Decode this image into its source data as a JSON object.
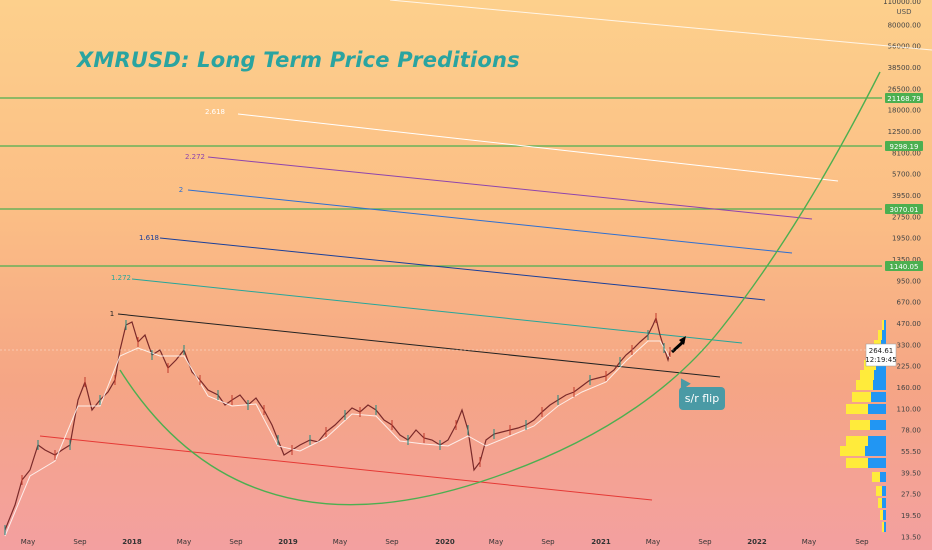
{
  "title": "XMRUSD: Long Term Price Preditions",
  "callout": "s/r flip",
  "currency": "USD",
  "price_tag": "264.61",
  "countdown": "12:19:45",
  "y_ticks": [
    "110000.00",
    "80000.00",
    "56000.00",
    "38500.00",
    "26500.00",
    "18000.00",
    "12500.00",
    "8100.00",
    "5700.00",
    "3950.00",
    "2750.00",
    "1950.00",
    "1350.00",
    "950.00",
    "670.00",
    "470.00",
    "330.00",
    "225.00",
    "160.00",
    "110.00",
    "78.00",
    "55.50",
    "39.50",
    "27.50",
    "19.50",
    "13.50"
  ],
  "x_ticks": [
    "May",
    "Sep",
    "2018",
    "May",
    "Sep",
    "2019",
    "May",
    "Sep",
    "2020",
    "May",
    "Sep",
    "2021",
    "May",
    "Sep",
    "2022",
    "May",
    "Sep"
  ],
  "levels": [
    "21168.79",
    "9298.19",
    "3070.01",
    "1140.05"
  ],
  "fib_labels": [
    "2.618",
    "2.272",
    "2",
    "1.618",
    "1.272",
    "1"
  ],
  "colors": {
    "title": "#2aa4a0",
    "level_line": "#4caf50",
    "candle_up": "#26a69a",
    "candle_down": "#ef5350",
    "arc": "#4caf50",
    "support": "#e53935",
    "volume_up": "#2196f3",
    "volume_down": "#ffeb3b"
  },
  "chart_data": {
    "type": "line",
    "symbol": "XMRUSD",
    "y_scale": "log",
    "ylim": [
      11.5,
      125000
    ],
    "x": [
      "2017-05",
      "2017-09",
      "2018-01",
      "2018-05",
      "2018-09",
      "2019-01",
      "2019-05",
      "2019-09",
      "2020-01",
      "2020-05",
      "2020-09",
      "2021-01",
      "2021-05",
      "2021-09",
      "2022-01",
      "2022-05",
      "2022-09"
    ],
    "series": [
      {
        "values": [
          23,
          90,
          380,
          230,
          110,
          45,
          85,
          75,
          48,
          62,
          105,
          135,
          360,
          null,
          null,
          null,
          null
        ]
      }
    ],
    "horizontal_levels": [
      21168.79,
      9298.19,
      3070.01,
      1140.05
    ],
    "fib_levels": [
      "1",
      "1.272",
      "1.618",
      "2",
      "2.272",
      "2.618"
    ]
  }
}
